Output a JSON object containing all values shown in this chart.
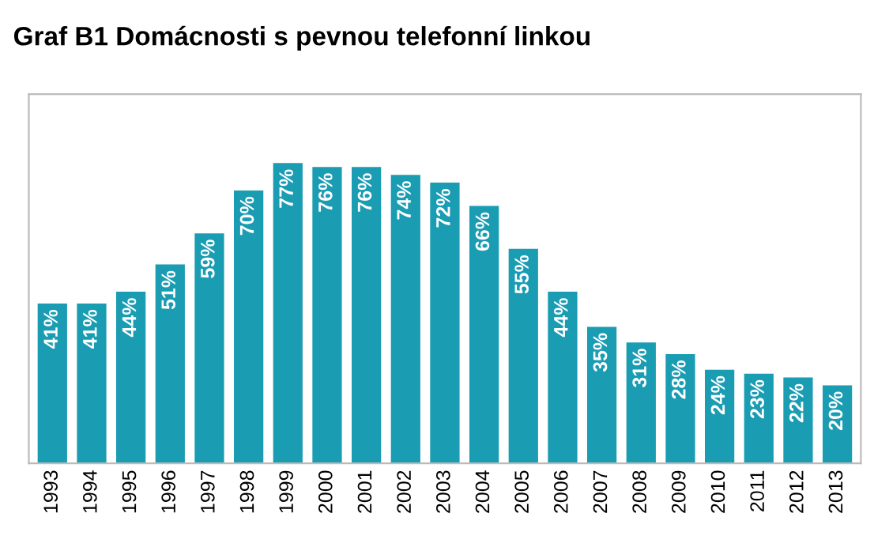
{
  "chart_data": {
    "type": "bar",
    "title": "Graf B1 Domácnosti s pevnou telefonní linkou",
    "categories": [
      "1993",
      "1994",
      "1995",
      "1996",
      "1997",
      "1998",
      "1999",
      "2000",
      "2001",
      "2002",
      "2003",
      "2004",
      "2005",
      "2006",
      "2007",
      "2008",
      "2009",
      "2010",
      "2011",
      "2012",
      "2013"
    ],
    "values": [
      41,
      41,
      44,
      51,
      59,
      70,
      77,
      76,
      76,
      74,
      72,
      66,
      55,
      44,
      35,
      31,
      28,
      24,
      23,
      22,
      20
    ],
    "value_labels": [
      "41%",
      "41%",
      "44%",
      "51%",
      "59%",
      "70%",
      "77%",
      "76%",
      "76%",
      "74%",
      "72%",
      "66%",
      "55%",
      "44%",
      "35%",
      "31%",
      "28%",
      "24%",
      "23%",
      "22%",
      "20%"
    ],
    "color": "#1a9cb3",
    "grid": false,
    "legend": false
  }
}
